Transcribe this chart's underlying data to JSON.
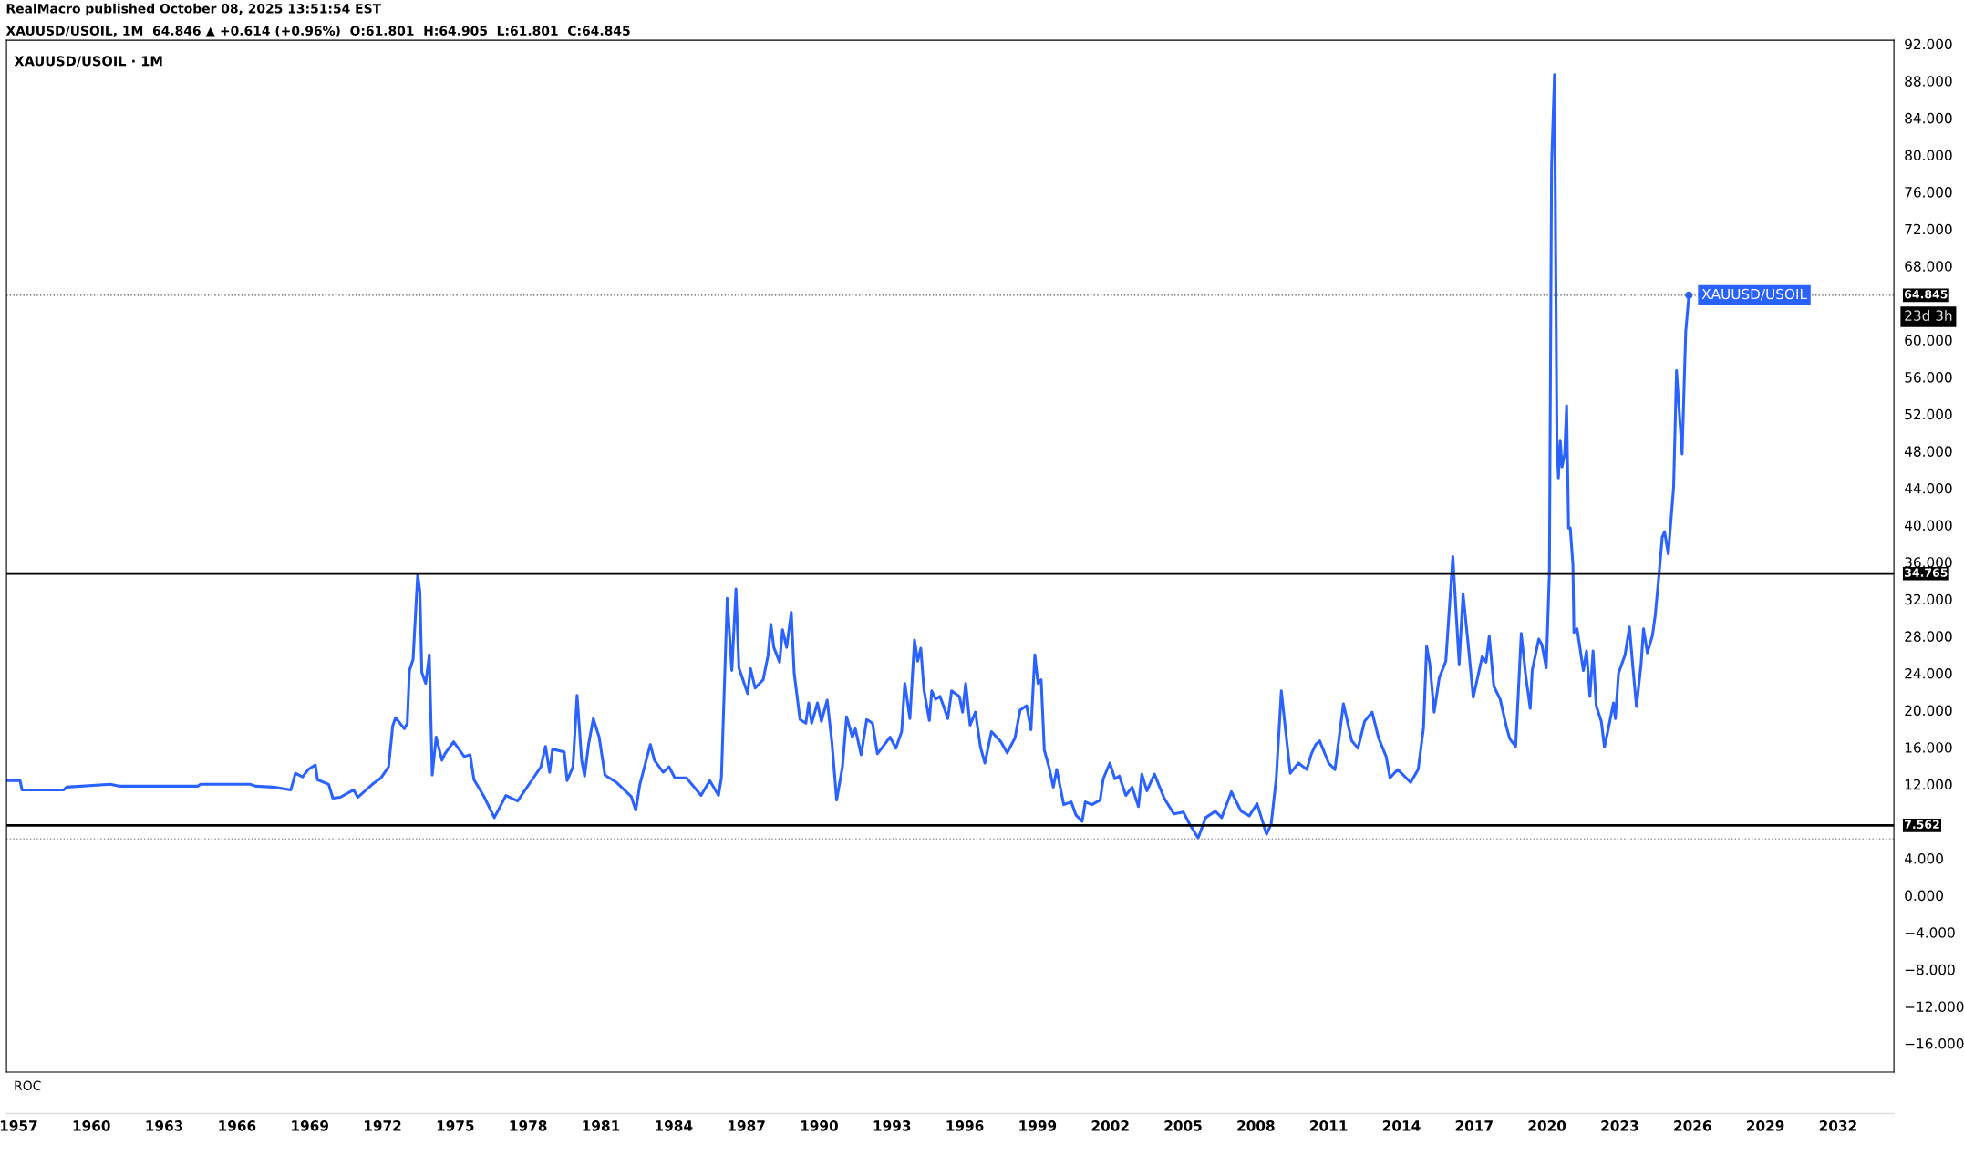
{
  "chart_data": {
    "type": "line",
    "title": "XAUUSD/USOIL · 1M",
    "annotations": [
      "RealMacro published October 08, 2025 13:51:54 EST",
      "XAUUSD/USOIL, 1M  64.846 ▲ +0.614 (+0.96%)  O:61.801  H:64.905  L:61.801  C:64.845",
      "ROC",
      "23d 3h"
    ],
    "series": [
      {
        "name": "XAUUSD/USOIL",
        "color": "#2962ff",
        "x": [
          1956.5,
          1957.06,
          1957.14,
          1958.86,
          1958.98,
          1960.78,
          1961.14,
          1964.38,
          1964.5,
          1966.54,
          1966.78,
          1967.5,
          1968.22,
          1968.41,
          1968.7,
          1968.94,
          1969.23,
          1969.32,
          1969.78,
          1969.95,
          1970.26,
          1970.81,
          1970.98,
          1971.58,
          1971.94,
          1972.25,
          1972.42,
          1972.54,
          1972.9,
          1973.02,
          1973.11,
          1973.26,
          1973.45,
          1973.54,
          1973.62,
          1973.78,
          1973.93,
          1974.05,
          1974.21,
          1974.45,
          1974.57,
          1974.93,
          1975.37,
          1975.61,
          1975.77,
          1976.18,
          1976.61,
          1977.09,
          1977.57,
          1978.17,
          1978.53,
          1978.72,
          1978.89,
          1979.01,
          1979.49,
          1979.61,
          1979.85,
          1980.02,
          1980.21,
          1980.33,
          1980.5,
          1980.69,
          1980.93,
          1981.17,
          1981.65,
          1982.25,
          1982.44,
          1982.61,
          1983.04,
          1983.21,
          1983.57,
          1983.81,
          1984.05,
          1984.53,
          1985.13,
          1985.49,
          1985.85,
          1985.97,
          1986.21,
          1986.4,
          1986.57,
          1986.69,
          1987.05,
          1987.17,
          1987.36,
          1987.69,
          1987.89,
          1988.01,
          1988.13,
          1988.37,
          1988.49,
          1988.66,
          1988.85,
          1988.97,
          1989.21,
          1989.45,
          1989.57,
          1989.69,
          1989.93,
          1990.09,
          1990.33,
          1990.53,
          1990.72,
          1990.96,
          1991.13,
          1991.37,
          1991.49,
          1991.73,
          1991.96,
          1992.2,
          1992.4,
          1992.92,
          1993.16,
          1993.4,
          1993.53,
          1993.74,
          1993.93,
          1994.06,
          1994.19,
          1994.32,
          1994.54,
          1994.64,
          1994.8,
          1994.98,
          1995.12,
          1995.3,
          1995.46,
          1995.78,
          1995.91,
          1996.04,
          1996.22,
          1996.44,
          1996.65,
          1996.83,
          1997.1,
          1997.49,
          1997.75,
          1998.07,
          1998.28,
          1998.55,
          1998.73,
          1998.89,
          1999.02,
          1999.15,
          1999.28,
          1999.47,
          1999.65,
          1999.79,
          2000.08,
          2000.39,
          2000.58,
          2000.84,
          2000.97,
          2001.24,
          2001.58,
          2001.71,
          2001.98,
          2002.19,
          2002.37,
          2002.64,
          2002.9,
          2003.16,
          2003.3,
          2003.51,
          2003.82,
          2004.22,
          2004.62,
          2005.01,
          2005.27,
          2005.62,
          2005.93,
          2006.33,
          2006.59,
          2006.99,
          2007.39,
          2007.73,
          2008.05,
          2008.44,
          2008.63,
          2008.84,
          2009.05,
          2009.23,
          2009.42,
          2009.76,
          2010.1,
          2010.29,
          2010.47,
          2010.63,
          2011.0,
          2011.26,
          2011.61,
          2011.95,
          2012.21,
          2012.48,
          2012.79,
          2013.06,
          2013.37,
          2013.53,
          2013.85,
          2014.38,
          2014.69,
          2014.91,
          2015.04,
          2015.17,
          2015.35,
          2015.56,
          2015.83,
          2016.12,
          2016.38,
          2016.54,
          2016.75,
          2016.96,
          2017.33,
          2017.49,
          2017.62,
          2017.81,
          2018.07,
          2018.34,
          2018.47,
          2018.71,
          2018.94,
          2019.13,
          2019.31,
          2019.39,
          2019.66,
          2019.79,
          2019.97,
          2020.1,
          2020.19,
          2020.31,
          2020.41,
          2020.47,
          2020.55,
          2020.62,
          2020.73,
          2020.81,
          2020.89,
          2020.96,
          2021.07,
          2021.11,
          2021.24,
          2021.5,
          2021.63,
          2021.77,
          2021.9,
          2022.03,
          2022.24,
          2022.37,
          2022.56,
          2022.74,
          2022.82,
          2022.95,
          2023.22,
          2023.4,
          2023.53,
          2023.69,
          2023.88,
          2023.98,
          2024.14,
          2024.35,
          2024.46,
          2024.62,
          2024.75,
          2024.85,
          2025.0,
          2025.22,
          2025.34,
          2025.57,
          2025.72,
          2025.85
        ],
        "values": [
          12.4,
          12.4,
          11.4,
          11.4,
          11.7,
          12.0,
          11.8,
          11.8,
          12.0,
          12.0,
          11.8,
          11.7,
          11.4,
          13.2,
          12.8,
          13.6,
          14.1,
          12.5,
          12.0,
          10.5,
          10.6,
          11.4,
          10.6,
          12.0,
          12.7,
          13.9,
          18.3,
          19.2,
          18.0,
          18.6,
          24.3,
          25.5,
          34.7,
          32.8,
          24.1,
          22.9,
          26.0,
          13.0,
          17.1,
          14.6,
          15.3,
          16.6,
          15.0,
          15.2,
          12.5,
          10.7,
          8.4,
          10.8,
          10.2,
          12.5,
          13.9,
          16.1,
          13.3,
          15.8,
          15.5,
          12.4,
          13.9,
          21.6,
          14.6,
          12.9,
          16.4,
          19.1,
          17.1,
          13.0,
          12.2,
          10.7,
          9.2,
          12.0,
          16.3,
          14.6,
          13.3,
          13.9,
          12.7,
          12.7,
          10.8,
          12.4,
          10.8,
          12.7,
          32.1,
          24.3,
          33.1,
          24.6,
          21.8,
          24.5,
          22.4,
          23.3,
          25.9,
          29.3,
          26.8,
          25.2,
          28.7,
          26.8,
          30.6,
          24.0,
          19.0,
          18.6,
          20.8,
          18.6,
          20.8,
          18.8,
          21.1,
          16.4,
          10.3,
          13.9,
          19.3,
          17.1,
          18.0,
          15.2,
          19.0,
          18.6,
          15.3,
          17.1,
          15.9,
          17.7,
          22.9,
          19.1,
          27.6,
          25.3,
          26.7,
          22.2,
          18.9,
          22.1,
          21.2,
          21.5,
          20.5,
          19.1,
          22.1,
          21.5,
          19.8,
          22.9,
          18.4,
          19.8,
          16.0,
          14.3,
          17.7,
          16.6,
          15.4,
          17.0,
          20.0,
          20.5,
          17.9,
          26.0,
          22.9,
          23.3,
          15.7,
          13.9,
          11.7,
          13.6,
          9.8,
          10.1,
          8.7,
          8.0,
          10.1,
          9.8,
          10.3,
          12.6,
          14.3,
          12.6,
          12.9,
          10.8,
          11.7,
          9.6,
          13.1,
          11.3,
          13.1,
          10.5,
          8.8,
          9.0,
          7.7,
          6.2,
          8.4,
          9.1,
          8.4,
          11.2,
          9.1,
          8.6,
          9.9,
          6.6,
          7.7,
          12.6,
          22.1,
          17.7,
          13.2,
          14.3,
          13.6,
          15.3,
          16.3,
          16.7,
          14.3,
          13.6,
          20.7,
          16.7,
          15.9,
          18.8,
          19.8,
          17.0,
          15.0,
          12.7,
          13.6,
          12.2,
          13.6,
          18.1,
          26.9,
          25.0,
          19.8,
          23.5,
          25.3,
          36.6,
          25.0,
          32.6,
          27.2,
          21.4,
          25.8,
          25.2,
          28.0,
          22.6,
          21.2,
          18.1,
          16.9,
          16.1,
          28.3,
          23.6,
          20.2,
          24.3,
          27.7,
          27.1,
          24.6,
          34.9,
          78.9,
          88.7,
          49.3,
          45.1,
          49.1,
          46.3,
          47.7,
          52.9,
          39.7,
          39.7,
          35.7,
          28.4,
          28.8,
          24.3,
          26.4,
          21.5,
          26.4,
          20.5,
          18.8,
          16.0,
          18.4,
          20.8,
          19.1,
          24.0,
          26.0,
          29.0,
          25.0,
          20.4,
          25.0,
          28.8,
          26.2,
          28.1,
          30.2,
          34.7,
          38.7,
          39.3,
          36.9,
          44.1,
          56.7,
          47.7,
          60.9,
          64.845
        ]
      }
    ],
    "xlim": [
      1956.5,
      2034.3
    ],
    "xticks": [
      1957,
      1960,
      1963,
      1966,
      1969,
      1972,
      1975,
      1978,
      1981,
      1984,
      1987,
      1990,
      1993,
      1996,
      1999,
      2002,
      2005,
      2008,
      2011,
      2014,
      2017,
      2020,
      2023,
      2026,
      2029,
      2032
    ],
    "ylim": [
      -19.1,
      92.4
    ],
    "yticks": [
      {
        "value": -16,
        "label": "−16.000"
      },
      {
        "value": -12,
        "label": "−12.000"
      },
      {
        "value": -8,
        "label": "−8.000"
      },
      {
        "value": -4,
        "label": "−4.000"
      },
      {
        "value": 0,
        "label": "0.000"
      },
      {
        "value": 4,
        "label": "4.000"
      },
      {
        "value": 12,
        "label": "12.000"
      },
      {
        "value": 16,
        "label": "16.000"
      },
      {
        "value": 20,
        "label": "20.000"
      },
      {
        "value": 24,
        "label": "24.000"
      },
      {
        "value": 28,
        "label": "28.000"
      },
      {
        "value": 32,
        "label": "32.000"
      },
      {
        "value": 36,
        "label": "36.000"
      },
      {
        "value": 40,
        "label": "40.000"
      },
      {
        "value": 44,
        "label": "44.000"
      },
      {
        "value": 48,
        "label": "48.000"
      },
      {
        "value": 52,
        "label": "52.000"
      },
      {
        "value": 56,
        "label": "56.000"
      },
      {
        "value": 60,
        "label": "60.000"
      },
      {
        "value": 68,
        "label": "68.000"
      },
      {
        "value": 72,
        "label": "72.000"
      },
      {
        "value": 76,
        "label": "76.000"
      },
      {
        "value": 80,
        "label": "80.000"
      },
      {
        "value": 84,
        "label": "84.000"
      },
      {
        "value": 88,
        "label": "88.000"
      },
      {
        "value": 92,
        "label": "92.000"
      }
    ],
    "ref_lines": [
      {
        "axis": "y",
        "value": 34.765,
        "label": "34.765",
        "color": "#000000",
        "line_style": "solid"
      },
      {
        "axis": "y",
        "value": 7.562,
        "label": "7.562",
        "color": "#000000",
        "line_style": "solid"
      },
      {
        "axis": "y",
        "value": 64.845,
        "label": "64.845",
        "color": "#555555",
        "line_style": "dotted"
      },
      {
        "axis": "y",
        "value": 6.1,
        "label": null,
        "color": "#999999",
        "line_style": "dotted"
      }
    ],
    "grid": false,
    "legend": false,
    "marker": "none",
    "line_style": "solid"
  }
}
